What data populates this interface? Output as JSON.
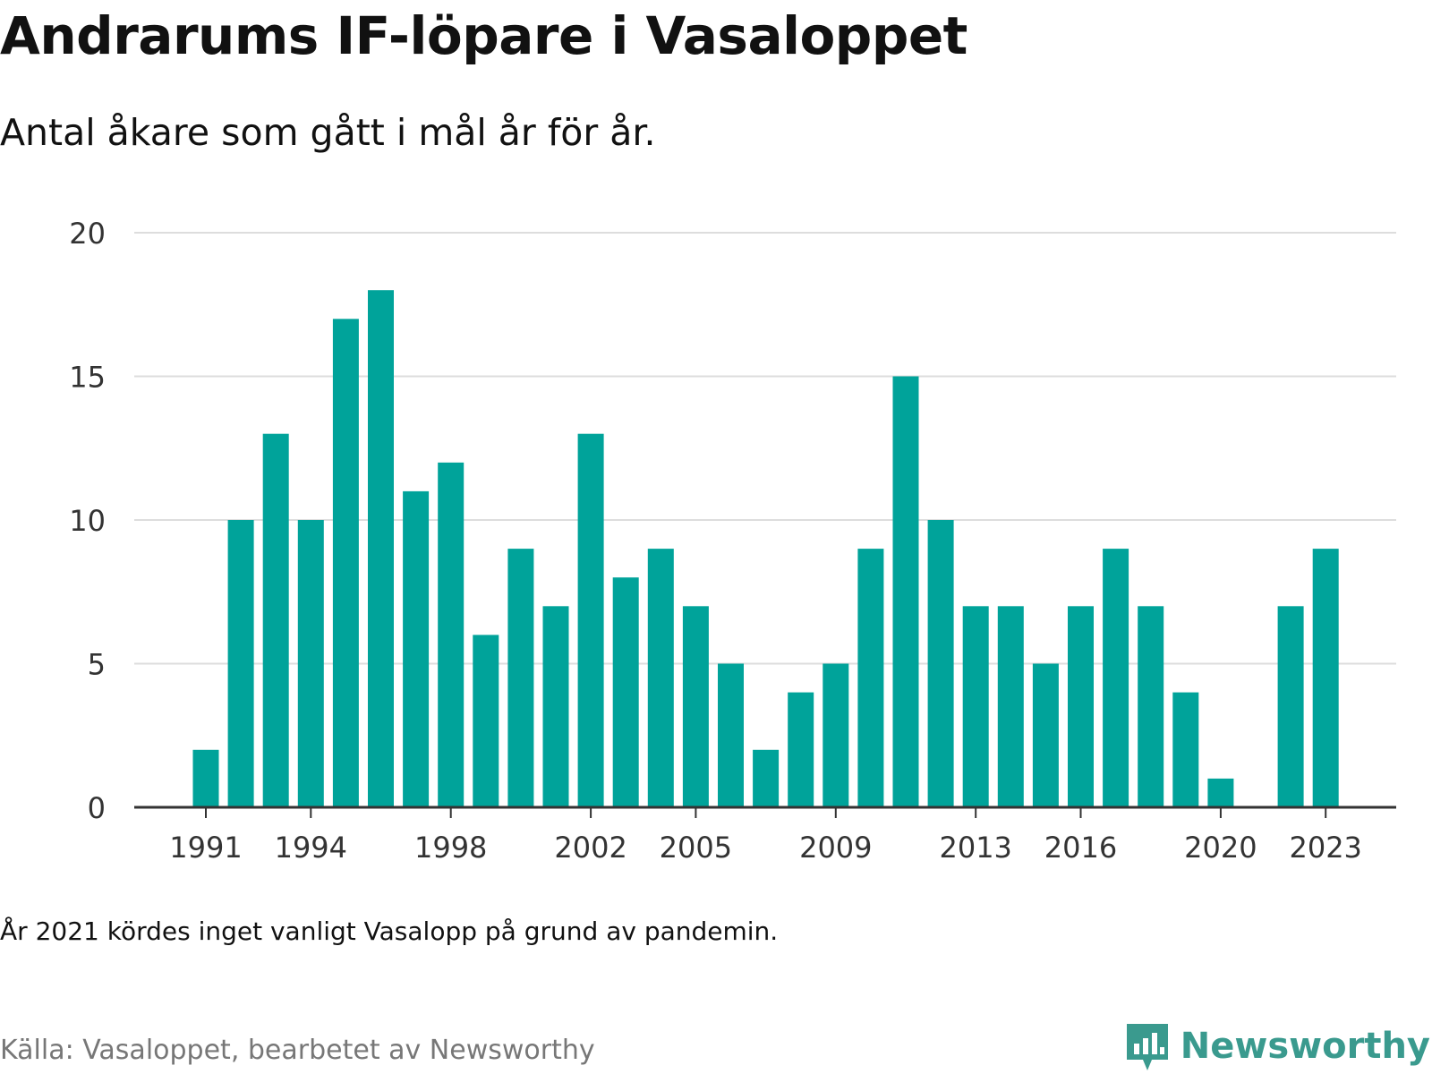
{
  "title": "Andrarums IF-löpare i Vasaloppet",
  "subtitle": "Antal åkare som gått i mål år för år.",
  "note": "År 2021 kördes inget vanligt Vasalopp på grund av pandemin.",
  "source": "Källa: Vasaloppet, bearbetet av Newsworthy",
  "brand": {
    "name": "Newsworthy",
    "icon": "newsworthy-logo-icon",
    "color": "#3a9a8e"
  },
  "chart_data": {
    "type": "bar",
    "x": [
      1991,
      1992,
      1993,
      1994,
      1995,
      1996,
      1997,
      1998,
      1999,
      2000,
      2001,
      2002,
      2003,
      2004,
      2005,
      2006,
      2007,
      2008,
      2009,
      2010,
      2011,
      2012,
      2013,
      2014,
      2015,
      2016,
      2017,
      2018,
      2019,
      2020,
      2021,
      2022,
      2023
    ],
    "values": [
      2,
      10,
      13,
      10,
      17,
      18,
      11,
      12,
      6,
      9,
      7,
      13,
      8,
      9,
      7,
      5,
      2,
      4,
      5,
      9,
      15,
      10,
      7,
      7,
      5,
      7,
      9,
      7,
      4,
      1,
      null,
      7,
      9
    ],
    "x_ticks": [
      "1991",
      "1994",
      "1998",
      "2002",
      "2005",
      "2009",
      "2013",
      "2016",
      "2020",
      "2023"
    ],
    "y_ticks": [
      0,
      5,
      10,
      15,
      20
    ],
    "ylim": [
      0,
      20
    ],
    "xlabel": "",
    "ylabel": "",
    "bar_color": "#00a39a",
    "grid": true,
    "grid_color": "#dddddd",
    "axis_color": "#333333"
  }
}
